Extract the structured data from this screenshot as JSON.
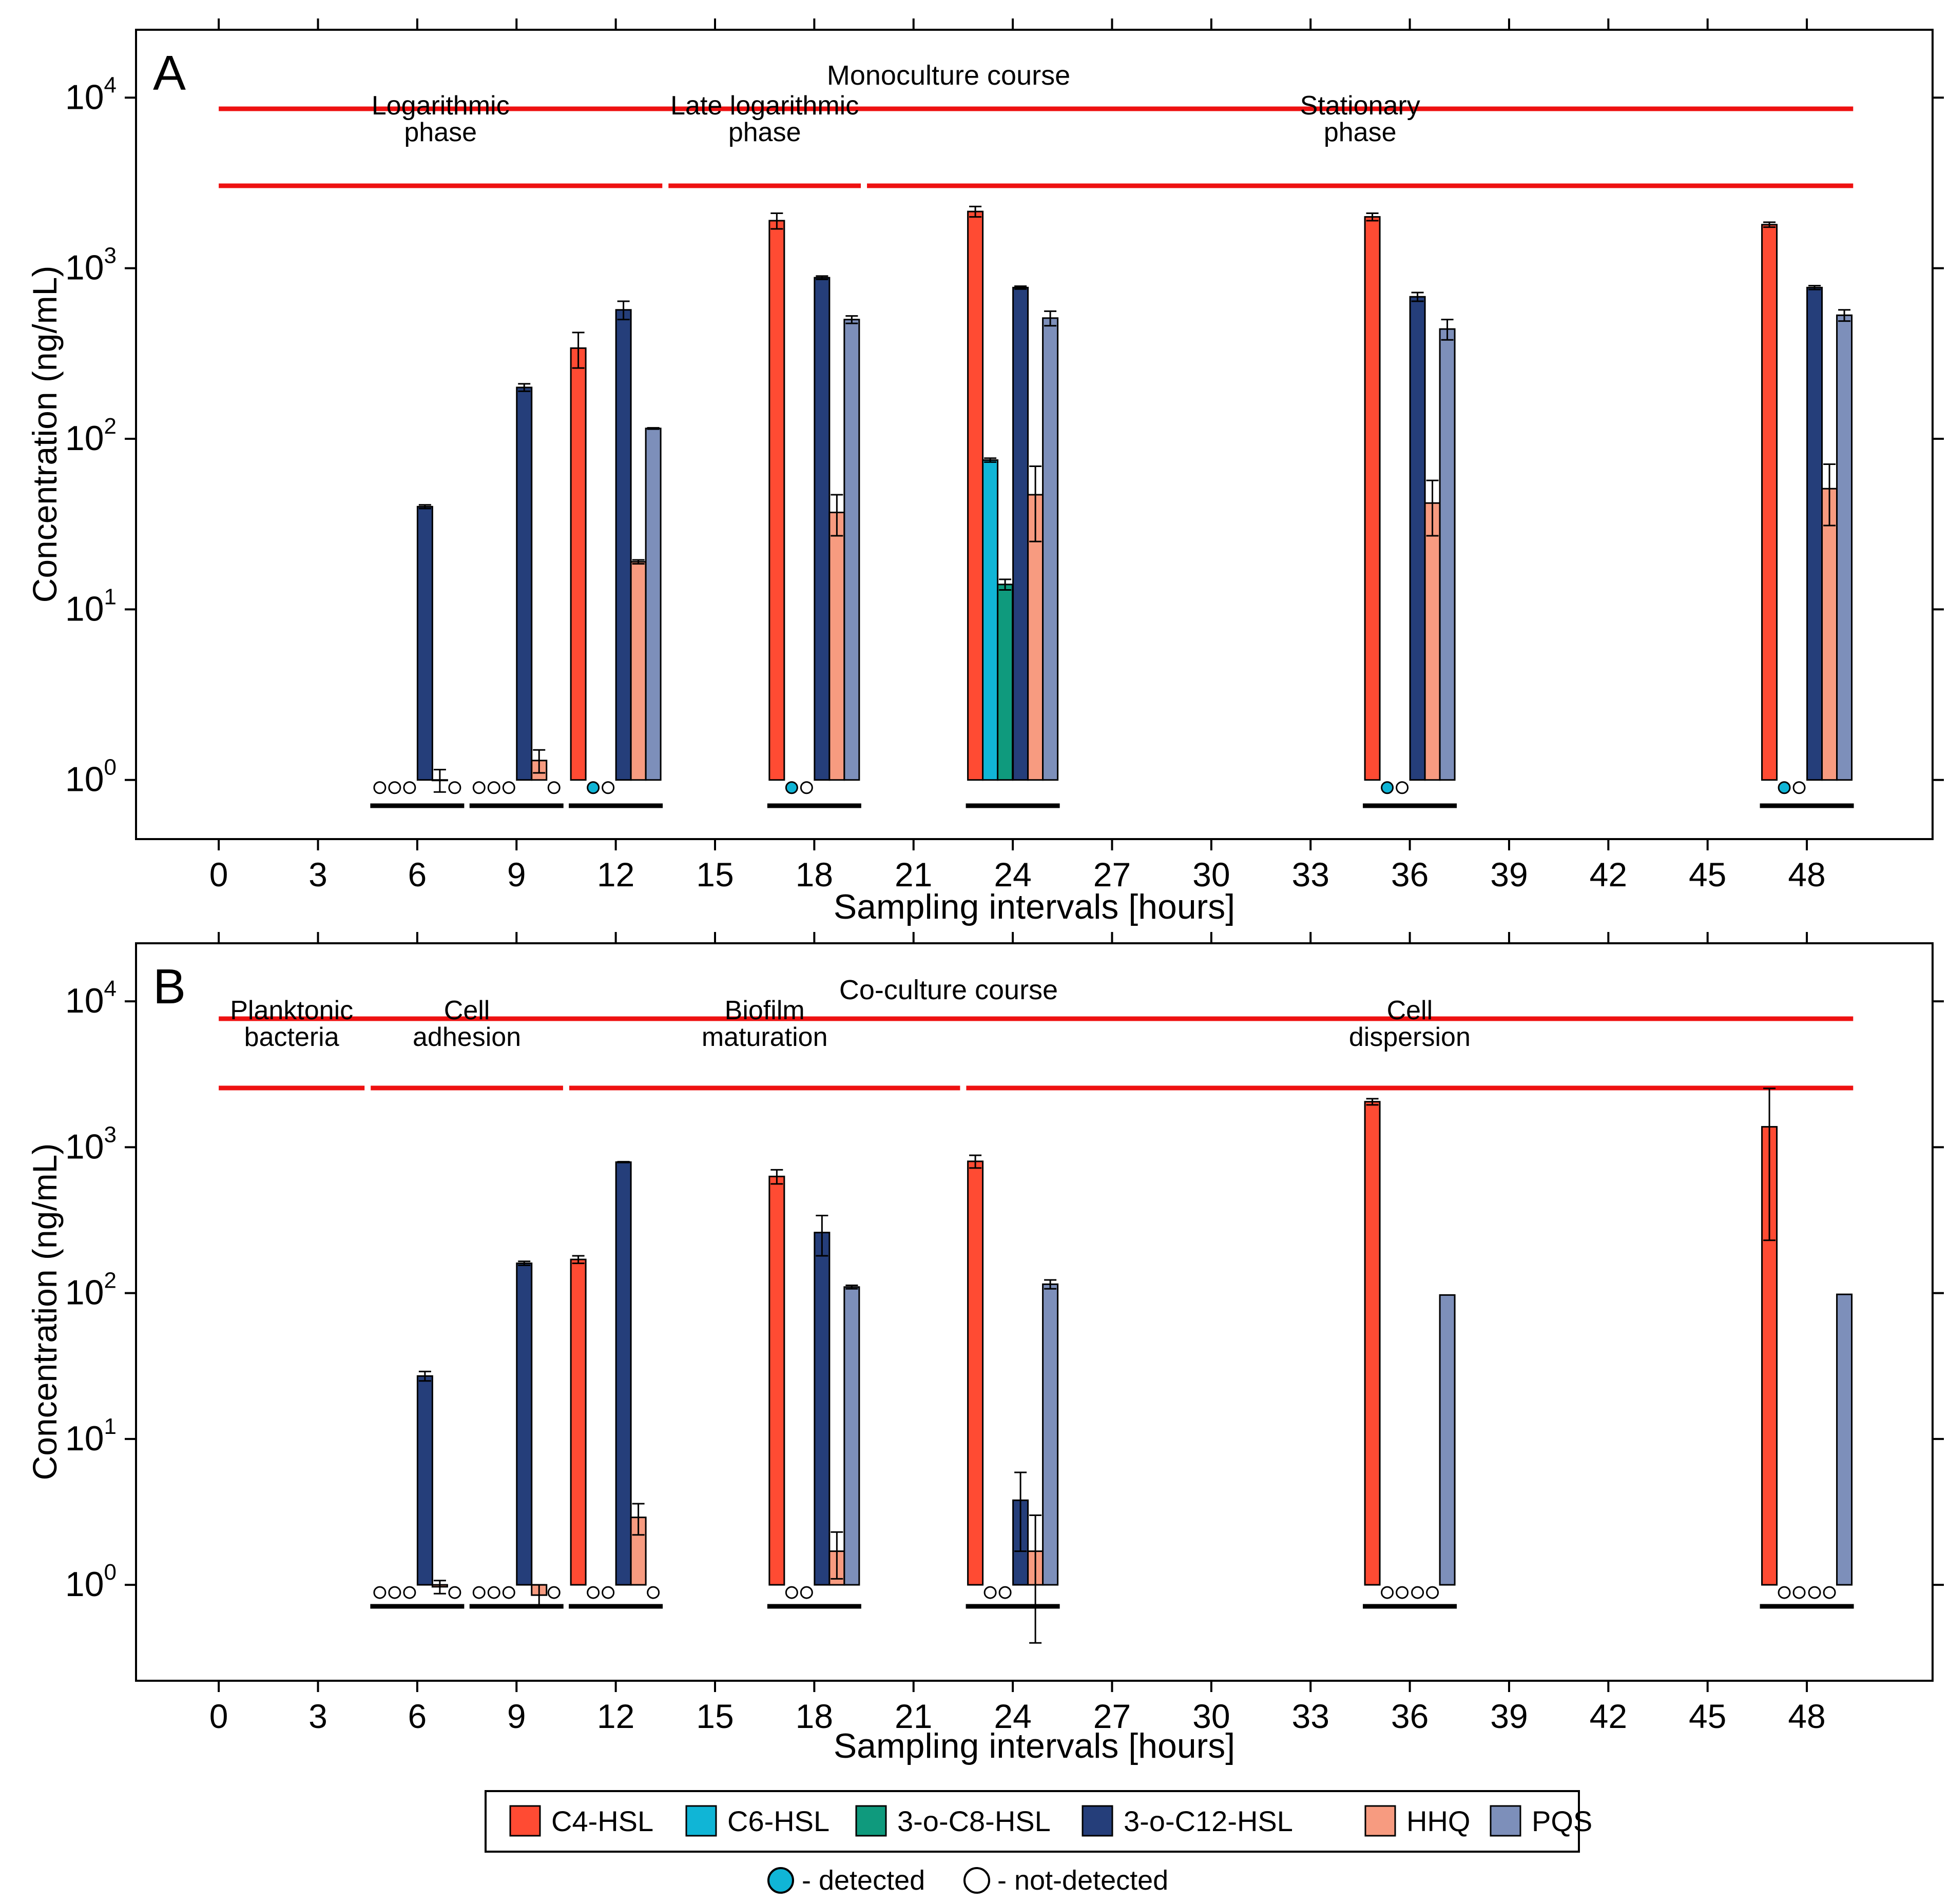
{
  "colors": {
    "C4-HSL": "#ff4b33",
    "C6-HSL": "#10b5d6",
    "3-o-C8-HSL": "#0f9a7d",
    "3-o-C12-HSL": "#253e7a",
    "HHQ": "#f79b80",
    "PQS": "#7d8fba",
    "phase_line": "#ee1111",
    "sample_line": "#000000",
    "detected_marker": "#10b5d6",
    "not_detected_marker": "#ffffff"
  },
  "legend": {
    "entries": [
      "C4-HSL",
      "C6-HSL",
      "3-o-C8-HSL",
      "3-o-C12-HSL",
      "HHQ",
      "PQS"
    ],
    "detected_label": "- detected",
    "not_detected_label": "- not-detected"
  },
  "chart_data": [
    {
      "type": "bar",
      "panel_label": "A",
      "course_label": "Monoculture course",
      "phases": [
        {
          "label_lines": [
            "Logarithmic",
            "phase"
          ],
          "start": 0,
          "end": 13.5
        },
        {
          "label_lines": [
            "Late logarithmic",
            "phase"
          ],
          "start": 13.5,
          "end": 19.5
        },
        {
          "label_lines": [
            "Stationary",
            "phase"
          ],
          "start": 19.5,
          "end": 49.4
        }
      ],
      "xlabel": "Sampling intervals [hours]",
      "ylabel": "Concentration (ng/mL)",
      "x_ticks": [
        0,
        3,
        6,
        9,
        12,
        15,
        18,
        21,
        24,
        27,
        30,
        33,
        36,
        39,
        42,
        45,
        48
      ],
      "y_ticks": [
        1,
        10,
        100,
        1000,
        10000
      ],
      "y_tick_labels": [
        {
          "base": "10",
          "exp": "0"
        },
        {
          "base": "10",
          "exp": "1"
        },
        {
          "base": "10",
          "exp": "2"
        },
        {
          "base": "10",
          "exp": "3"
        },
        {
          "base": "10",
          "exp": "4"
        }
      ],
      "y_scale": "log",
      "xlim": [
        -2.5,
        51.8
      ],
      "ylim": [
        0.45,
        25000
      ],
      "series_names": [
        "C4-HSL",
        "C6-HSL",
        "3-o-C8-HSL",
        "3-o-C12-HSL",
        "HHQ",
        "PQS"
      ],
      "groups": [
        {
          "time": 6,
          "values": [
            null,
            null,
            null,
            40,
            1.0,
            null
          ],
          "errors": [
            null,
            null,
            null,
            1,
            0.15,
            null
          ],
          "markers": [
            "not-detected",
            "not-detected",
            "not-detected",
            null,
            null,
            "not-detected"
          ]
        },
        {
          "time": 9,
          "values": [
            null,
            null,
            null,
            200,
            1.3,
            null
          ],
          "errors": [
            null,
            null,
            null,
            10,
            0.2,
            null
          ],
          "markers": [
            "not-detected",
            "not-detected",
            "not-detected",
            null,
            null,
            "not-detected"
          ]
        },
        {
          "time": 12,
          "values": [
            340,
            null,
            null,
            570,
            19,
            115
          ],
          "errors": [
            80,
            null,
            null,
            70,
            0.5,
            1
          ],
          "markers": [
            null,
            "detected",
            "not-detected",
            null,
            null,
            null
          ]
        },
        {
          "time": 18,
          "values": [
            1900,
            null,
            null,
            880,
            37,
            500
          ],
          "errors": [
            200,
            null,
            null,
            20,
            10,
            25
          ],
          "markers": [
            null,
            "detected",
            "not-detected",
            null,
            null,
            null
          ]
        },
        {
          "time": 24,
          "values": [
            2150,
            75,
            14,
            770,
            47,
            510
          ],
          "errors": [
            150,
            2,
            1,
            15,
            22,
            50
          ],
          "markers": [
            null,
            null,
            null,
            null,
            null,
            null
          ]
        },
        {
          "time": 36,
          "values": [
            2000,
            null,
            null,
            680,
            42,
            440
          ],
          "errors": [
            100,
            null,
            null,
            40,
            15,
            60
          ],
          "markers": [
            null,
            "detected",
            "not-detected",
            null,
            null,
            null
          ]
        },
        {
          "time": 48,
          "values": [
            1800,
            null,
            null,
            770,
            51,
            530
          ],
          "errors": [
            60,
            null,
            null,
            20,
            20,
            40
          ],
          "markers": [
            null,
            "detected",
            "not-detected",
            null,
            null,
            null
          ]
        }
      ]
    },
    {
      "type": "bar",
      "panel_label": "B",
      "course_label": "Co-culture course",
      "phases": [
        {
          "label_lines": [
            "Planktonic",
            "bacteria"
          ],
          "start": 0,
          "end": 4.5
        },
        {
          "label_lines": [
            "Cell",
            "adhesion"
          ],
          "start": 4.5,
          "end": 10.5
        },
        {
          "label_lines": [
            "Biofilm",
            "maturation"
          ],
          "start": 10.5,
          "end": 22.5
        },
        {
          "label_lines": [
            "Cell",
            "dispersion"
          ],
          "start": 22.5,
          "end": 49.4
        }
      ],
      "xlabel": "Sampling intervals [hours]",
      "ylabel": "Concentration (ng/mL)",
      "x_ticks": [
        0,
        3,
        6,
        9,
        12,
        15,
        18,
        21,
        24,
        27,
        30,
        33,
        36,
        39,
        42,
        45,
        48
      ],
      "y_ticks": [
        1,
        10,
        100,
        1000,
        10000
      ],
      "y_tick_labels": [
        {
          "base": "10",
          "exp": "0"
        },
        {
          "base": "10",
          "exp": "1"
        },
        {
          "base": "10",
          "exp": "2"
        },
        {
          "base": "10",
          "exp": "3"
        },
        {
          "base": "10",
          "exp": "4"
        }
      ],
      "y_scale": "log",
      "xlim": [
        -2.5,
        51.8
      ],
      "ylim": [
        0.22,
        25000
      ],
      "series_names": [
        "C4-HSL",
        "C6-HSL",
        "3-o-C8-HSL",
        "3-o-C12-HSL",
        "HHQ",
        "PQS"
      ],
      "groups": [
        {
          "time": 6,
          "values": [
            null,
            null,
            null,
            27,
            0.97,
            null
          ],
          "errors": [
            null,
            null,
            null,
            2,
            0.1,
            null
          ],
          "markers": [
            "not-detected",
            "not-detected",
            "not-detected",
            null,
            null,
            "not-detected"
          ]
        },
        {
          "time": 9,
          "values": [
            null,
            null,
            null,
            160,
            0.85,
            null
          ],
          "errors": [
            null,
            null,
            null,
            5,
            0.15,
            null
          ],
          "markers": [
            "not-detected",
            "not-detected",
            "not-detected",
            null,
            null,
            "not-detected"
          ]
        },
        {
          "time": 12,
          "values": [
            170,
            null,
            null,
            790,
            2.9,
            null
          ],
          "errors": [
            10,
            null,
            null,
            5,
            0.7,
            null
          ],
          "markers": [
            null,
            "not-detected",
            "not-detected",
            null,
            null,
            "not-detected"
          ]
        },
        {
          "time": 18,
          "values": [
            630,
            null,
            null,
            260,
            1.7,
            110
          ],
          "errors": [
            70,
            null,
            null,
            80,
            0.6,
            3
          ],
          "markers": [
            null,
            "not-detected",
            "not-detected",
            null,
            null,
            null
          ]
        },
        {
          "time": 24,
          "values": [
            800,
            null,
            null,
            3.8,
            1.7,
            115
          ],
          "errors": [
            80,
            null,
            null,
            2.1,
            1.3,
            8
          ],
          "markers": [
            null,
            "not-detected",
            "not-detected",
            null,
            null,
            null
          ]
        },
        {
          "time": 36,
          "values": [
            2050,
            null,
            null,
            null,
            null,
            97
          ],
          "errors": [
            100,
            null,
            null,
            null,
            null,
            0
          ],
          "markers": [
            null,
            "not-detected",
            "not-detected",
            "not-detected",
            "not-detected",
            null
          ]
        },
        {
          "time": 48,
          "values": [
            1380,
            null,
            null,
            null,
            null,
            98
          ],
          "errors": [
            1150,
            null,
            null,
            null,
            null,
            0
          ],
          "markers": [
            null,
            "not-detected",
            "not-detected",
            "not-detected",
            "not-detected",
            null
          ]
        }
      ]
    }
  ]
}
